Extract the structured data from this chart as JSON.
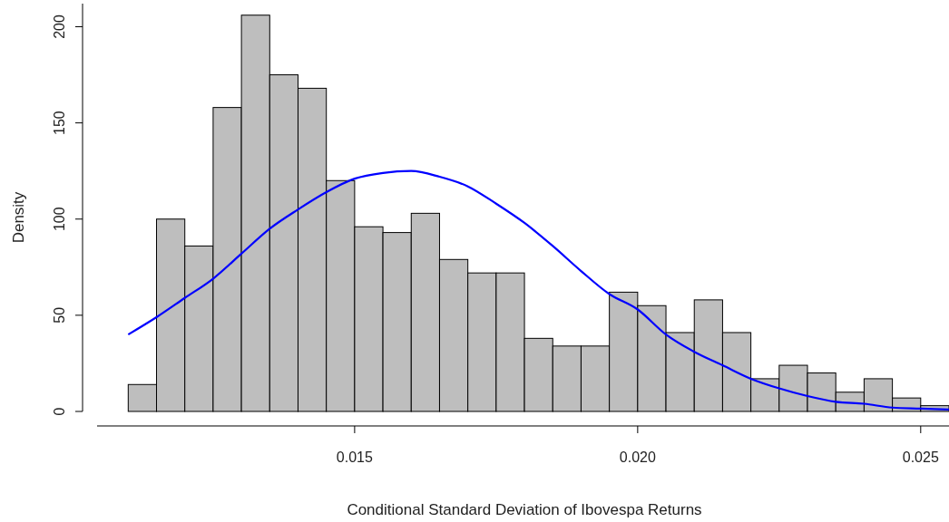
{
  "chart_data": {
    "type": "histogram",
    "xlabel": "Conditional Standard Deviation of Ibovespa Returns",
    "ylabel": "Density",
    "xlim": [
      0.01045,
      0.0255
    ],
    "ylim": [
      0,
      212
    ],
    "xticks": [
      {
        "value": 0.015,
        "label": "0.015"
      },
      {
        "value": 0.02,
        "label": "0.020"
      },
      {
        "value": 0.025,
        "label": "0.025"
      }
    ],
    "yticks": [
      0,
      50,
      100,
      150,
      200
    ],
    "bins": [
      0.011,
      0.0115,
      0.012,
      0.0125,
      0.013,
      0.0135,
      0.014,
      0.0145,
      0.015,
      0.0155,
      0.016,
      0.0165,
      0.017,
      0.0175,
      0.018,
      0.0185,
      0.019,
      0.0195,
      0.02,
      0.0205,
      0.021,
      0.0215,
      0.022,
      0.0225,
      0.023,
      0.0235,
      0.024,
      0.0245,
      0.025,
      0.0255
    ],
    "series": [
      {
        "type": "histogram",
        "color": "#bebebe",
        "values": [
          14,
          100,
          86,
          158,
          206,
          175,
          168,
          120,
          96,
          93,
          103,
          79,
          72,
          72,
          38,
          34,
          34,
          62,
          55,
          41,
          58,
          41,
          17,
          24,
          20,
          10,
          17,
          7,
          3
        ]
      },
      {
        "type": "line",
        "color": "#0000ff",
        "x": [
          0.011,
          0.0115,
          0.012,
          0.0125,
          0.013,
          0.0135,
          0.014,
          0.0145,
          0.015,
          0.0155,
          0.016,
          0.0165,
          0.017,
          0.0175,
          0.018,
          0.0185,
          0.019,
          0.0195,
          0.02,
          0.0205,
          0.021,
          0.0215,
          0.022,
          0.0225,
          0.023,
          0.0235,
          0.024,
          0.0245,
          0.025,
          0.0255
        ],
        "values": [
          40,
          49,
          59,
          69,
          82,
          95,
          105,
          114,
          121,
          124,
          125,
          122,
          117,
          108,
          98,
          86,
          73,
          61,
          53,
          40,
          31,
          24,
          17,
          12,
          8,
          5,
          4,
          2,
          1.5,
          1
        ]
      }
    ]
  }
}
